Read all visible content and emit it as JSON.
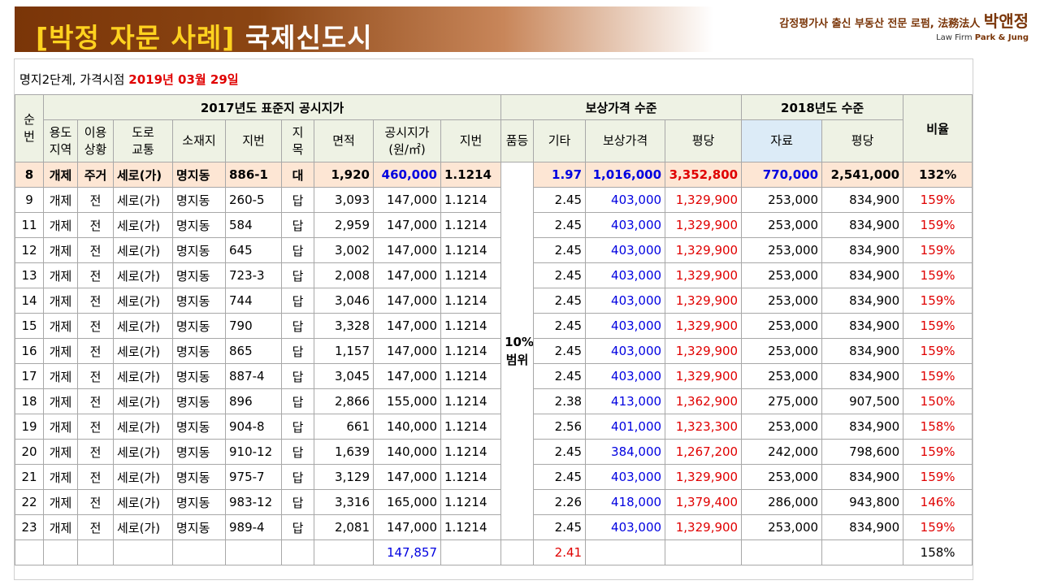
{
  "banner": {
    "title_bracket": "[박정 자문 사례]",
    "title_main": "국제신도시",
    "firm_tagline": "감정평가사 출신 부동산 전문 로펌, 法務法人",
    "firm_name": "박앤정",
    "firm_english_prefix": "Law Firm",
    "firm_english_name": "Park & Jung"
  },
  "subtitle": {
    "prefix": "명지2단계, 가격시점",
    "date": "2019년 03월 29일"
  },
  "headers": {
    "seq": "순번",
    "group1": "2017년도 표준지 공시지가",
    "group2": "보상가격 수준",
    "group3": "2018년도 수준",
    "ratio": "비율",
    "use_area": [
      "용도",
      "지역"
    ],
    "use_status": [
      "이용",
      "상황"
    ],
    "road": [
      "도로",
      "교통"
    ],
    "location": "소재지",
    "lot": "지번",
    "jimok": [
      "지",
      "목"
    ],
    "area": "면적",
    "official_price": [
      "공시지가",
      "(원/㎡)"
    ],
    "comp_lot": "지번",
    "quality": "품등",
    "other": "기타",
    "comp_price": "보상가격",
    "per_pyeong": "평당",
    "data": "자료",
    "per_pyeong2": "평당"
  },
  "merged_quality": [
    "10%",
    "범위"
  ],
  "rows": [
    {
      "seq": "8",
      "use": "개제",
      "status": "주거",
      "road": "세로(가)",
      "loc": "명지동",
      "lot": "886-1",
      "jimok": "대",
      "area": "1,920",
      "official": "460,000",
      "factor": "1.1214",
      "other": "1.97",
      "comp": "1,016,000",
      "pyeong": "3,352,800",
      "data": "770,000",
      "pyeong2": "2,541,000",
      "ratio": "132%"
    },
    {
      "seq": "9",
      "use": "개제",
      "status": "전",
      "road": "세로(가)",
      "loc": "명지동",
      "lot": "260-5",
      "jimok": "답",
      "area": "3,093",
      "official": "147,000",
      "factor": "1.1214",
      "other": "2.45",
      "comp": "403,000",
      "pyeong": "1,329,900",
      "data": "253,000",
      "pyeong2": "834,900",
      "ratio": "159%"
    },
    {
      "seq": "11",
      "use": "개제",
      "status": "전",
      "road": "세로(가)",
      "loc": "명지동",
      "lot": "584",
      "jimok": "답",
      "area": "2,959",
      "official": "147,000",
      "factor": "1.1214",
      "other": "2.45",
      "comp": "403,000",
      "pyeong": "1,329,900",
      "data": "253,000",
      "pyeong2": "834,900",
      "ratio": "159%"
    },
    {
      "seq": "12",
      "use": "개제",
      "status": "전",
      "road": "세로(가)",
      "loc": "명지동",
      "lot": "645",
      "jimok": "답",
      "area": "3,002",
      "official": "147,000",
      "factor": "1.1214",
      "other": "2.45",
      "comp": "403,000",
      "pyeong": "1,329,900",
      "data": "253,000",
      "pyeong2": "834,900",
      "ratio": "159%"
    },
    {
      "seq": "13",
      "use": "개제",
      "status": "전",
      "road": "세로(가)",
      "loc": "명지동",
      "lot": "723-3",
      "jimok": "답",
      "area": "2,008",
      "official": "147,000",
      "factor": "1.1214",
      "other": "2.45",
      "comp": "403,000",
      "pyeong": "1,329,900",
      "data": "253,000",
      "pyeong2": "834,900",
      "ratio": "159%"
    },
    {
      "seq": "14",
      "use": "개제",
      "status": "전",
      "road": "세로(가)",
      "loc": "명지동",
      "lot": "744",
      "jimok": "답",
      "area": "3,046",
      "official": "147,000",
      "factor": "1.1214",
      "other": "2.45",
      "comp": "403,000",
      "pyeong": "1,329,900",
      "data": "253,000",
      "pyeong2": "834,900",
      "ratio": "159%"
    },
    {
      "seq": "15",
      "use": "개제",
      "status": "전",
      "road": "세로(가)",
      "loc": "명지동",
      "lot": "790",
      "jimok": "답",
      "area": "3,328",
      "official": "147,000",
      "factor": "1.1214",
      "other": "2.45",
      "comp": "403,000",
      "pyeong": "1,329,900",
      "data": "253,000",
      "pyeong2": "834,900",
      "ratio": "159%"
    },
    {
      "seq": "16",
      "use": "개제",
      "status": "전",
      "road": "세로(가)",
      "loc": "명지동",
      "lot": "865",
      "jimok": "답",
      "area": "1,157",
      "official": "147,000",
      "factor": "1.1214",
      "other": "2.45",
      "comp": "403,000",
      "pyeong": "1,329,900",
      "data": "253,000",
      "pyeong2": "834,900",
      "ratio": "159%"
    },
    {
      "seq": "17",
      "use": "개제",
      "status": "전",
      "road": "세로(가)",
      "loc": "명지동",
      "lot": "887-4",
      "jimok": "답",
      "area": "3,045",
      "official": "147,000",
      "factor": "1.1214",
      "other": "2.45",
      "comp": "403,000",
      "pyeong": "1,329,900",
      "data": "253,000",
      "pyeong2": "834,900",
      "ratio": "159%"
    },
    {
      "seq": "18",
      "use": "개제",
      "status": "전",
      "road": "세로(가)",
      "loc": "명지동",
      "lot": "896",
      "jimok": "답",
      "area": "2,866",
      "official": "155,000",
      "factor": "1.1214",
      "other": "2.38",
      "comp": "413,000",
      "pyeong": "1,362,900",
      "data": "275,000",
      "pyeong2": "907,500",
      "ratio": "150%"
    },
    {
      "seq": "19",
      "use": "개제",
      "status": "전",
      "road": "세로(가)",
      "loc": "명지동",
      "lot": "904-8",
      "jimok": "답",
      "area": "661",
      "official": "140,000",
      "factor": "1.1214",
      "other": "2.56",
      "comp": "401,000",
      "pyeong": "1,323,300",
      "data": "253,000",
      "pyeong2": "834,900",
      "ratio": "158%"
    },
    {
      "seq": "20",
      "use": "개제",
      "status": "전",
      "road": "세로(가)",
      "loc": "명지동",
      "lot": "910-12",
      "jimok": "답",
      "area": "1,639",
      "official": "140,000",
      "factor": "1.1214",
      "other": "2.45",
      "comp": "384,000",
      "pyeong": "1,267,200",
      "data": "242,000",
      "pyeong2": "798,600",
      "ratio": "159%"
    },
    {
      "seq": "21",
      "use": "개제",
      "status": "전",
      "road": "세로(가)",
      "loc": "명지동",
      "lot": "975-7",
      "jimok": "답",
      "area": "3,129",
      "official": "147,000",
      "factor": "1.1214",
      "other": "2.45",
      "comp": "403,000",
      "pyeong": "1,329,900",
      "data": "253,000",
      "pyeong2": "834,900",
      "ratio": "159%"
    },
    {
      "seq": "22",
      "use": "개제",
      "status": "전",
      "road": "세로(가)",
      "loc": "명지동",
      "lot": "983-12",
      "jimok": "답",
      "area": "3,316",
      "official": "165,000",
      "factor": "1.1214",
      "other": "2.26",
      "comp": "418,000",
      "pyeong": "1,379,400",
      "data": "286,000",
      "pyeong2": "943,800",
      "ratio": "146%"
    },
    {
      "seq": "23",
      "use": "개제",
      "status": "전",
      "road": "세로(가)",
      "loc": "명지동",
      "lot": "989-4",
      "jimok": "답",
      "area": "2,081",
      "official": "147,000",
      "factor": "1.1214",
      "other": "2.45",
      "comp": "403,000",
      "pyeong": "1,329,900",
      "data": "253,000",
      "pyeong2": "834,900",
      "ratio": "159%"
    }
  ],
  "summary": {
    "official_avg": "147,857",
    "other_avg": "2.41",
    "ratio_avg": "158%"
  }
}
